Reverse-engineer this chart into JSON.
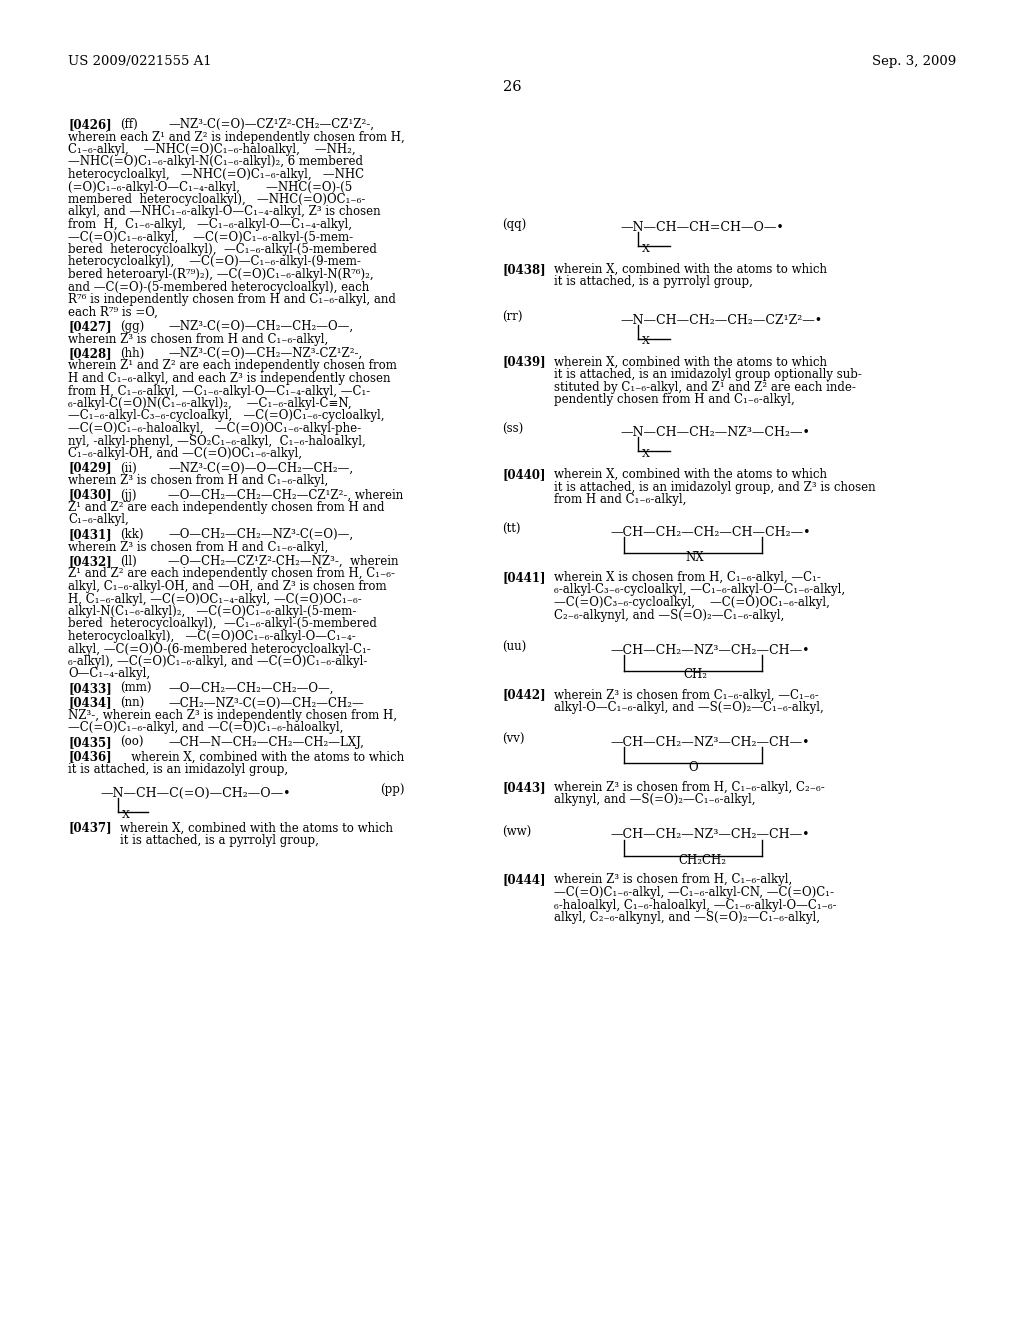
{
  "page_header_left": "US 2009/0221555 A1",
  "page_header_right": "Sep. 3, 2009",
  "page_number": "26",
  "background_color": "#ffffff",
  "text_color": "#000000"
}
